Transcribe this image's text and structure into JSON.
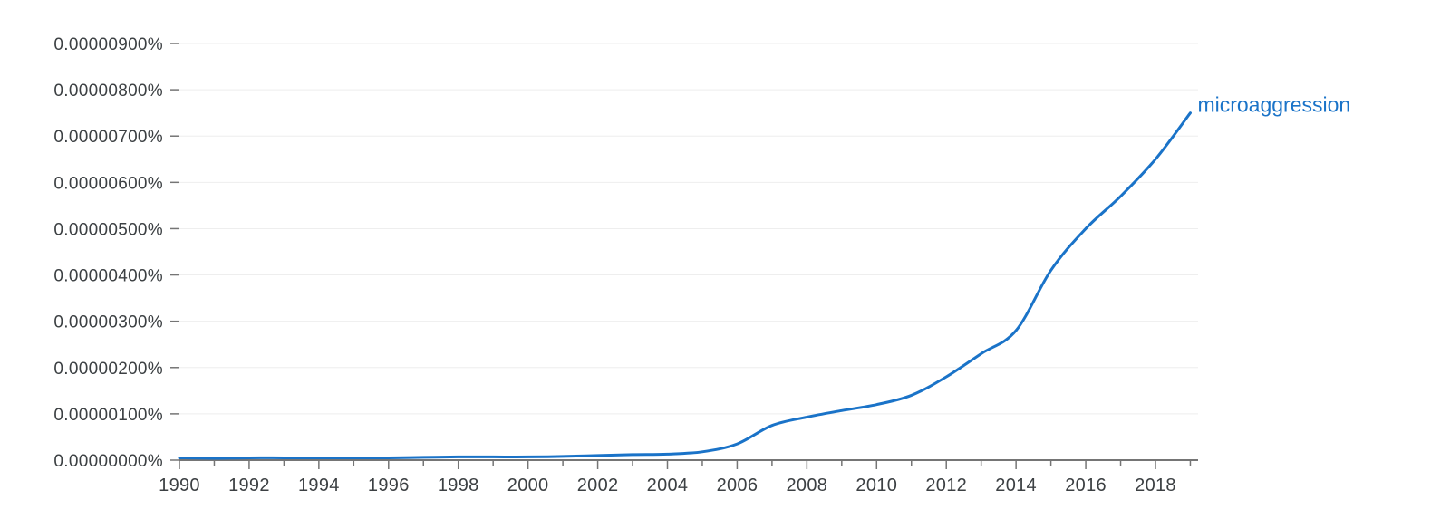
{
  "chart_data": {
    "type": "line",
    "title": "",
    "xlabel": "",
    "ylabel": "",
    "xlim": [
      1990,
      2019
    ],
    "ylim": [
      0,
      9e-06
    ],
    "grid": true,
    "y_ticks": [
      {
        "value": 0.0,
        "label": "0.00000000%"
      },
      {
        "value": 1e-06,
        "label": "0.00000100%"
      },
      {
        "value": 2e-06,
        "label": "0.00000200%"
      },
      {
        "value": 3e-06,
        "label": "0.00000300%"
      },
      {
        "value": 4e-06,
        "label": "0.00000400%"
      },
      {
        "value": 5e-06,
        "label": "0.00000500%"
      },
      {
        "value": 6e-06,
        "label": "0.00000600%"
      },
      {
        "value": 7e-06,
        "label": "0.00000700%"
      },
      {
        "value": 8e-06,
        "label": "0.00000800%"
      },
      {
        "value": 9e-06,
        "label": "0.00000900%"
      }
    ],
    "x_ticks": [
      {
        "value": 1990,
        "label": "1990"
      },
      {
        "value": 1992,
        "label": "1992"
      },
      {
        "value": 1994,
        "label": "1994"
      },
      {
        "value": 1996,
        "label": "1996"
      },
      {
        "value": 1998,
        "label": "1998"
      },
      {
        "value": 2000,
        "label": "2000"
      },
      {
        "value": 2002,
        "label": "2002"
      },
      {
        "value": 2004,
        "label": "2004"
      },
      {
        "value": 2006,
        "label": "2006"
      },
      {
        "value": 2008,
        "label": "2008"
      },
      {
        "value": 2010,
        "label": "2010"
      },
      {
        "value": 2012,
        "label": "2012"
      },
      {
        "value": 2014,
        "label": "2014"
      },
      {
        "value": 2016,
        "label": "2016"
      },
      {
        "value": 2018,
        "label": "2018"
      }
    ],
    "series": [
      {
        "name": "microaggression",
        "color": "#1a73c8",
        "x": [
          1990,
          1991,
          1992,
          1993,
          1994,
          1995,
          1996,
          1997,
          1998,
          1999,
          2000,
          2001,
          2002,
          2003,
          2004,
          2005,
          2006,
          2007,
          2008,
          2009,
          2010,
          2011,
          2012,
          2013,
          2014,
          2015,
          2016,
          2017,
          2018,
          2019
        ],
        "values": [
          5e-08,
          4e-08,
          5e-08,
          5e-08,
          5e-08,
          5e-08,
          5e-08,
          6e-08,
          7e-08,
          7e-08,
          7e-08,
          8e-08,
          1e-07,
          1.2e-07,
          1.3e-07,
          1.8e-07,
          3.5e-07,
          7.5e-07,
          9.3e-07,
          1.07e-06,
          1.2e-06,
          1.4e-06,
          1.8e-06,
          2.3e-06,
          2.8e-06,
          4.1e-06,
          5e-06,
          5.7e-06,
          6.5e-06,
          7.5e-06
        ]
      }
    ]
  }
}
